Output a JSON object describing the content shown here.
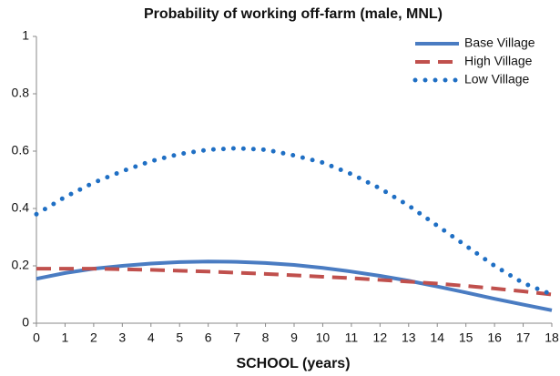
{
  "chart_data": {
    "type": "line",
    "title": "Probability of working off-farm (male, MNL)",
    "xlabel": "SCHOOL (years)",
    "x": [
      0,
      1,
      2,
      3,
      4,
      5,
      6,
      7,
      8,
      9,
      10,
      11,
      12,
      13,
      14,
      15,
      16,
      17,
      18
    ],
    "xlim": [
      0,
      18
    ],
    "xticks": [
      0,
      1,
      2,
      3,
      4,
      5,
      6,
      7,
      8,
      9,
      10,
      11,
      12,
      13,
      14,
      15,
      16,
      17,
      18
    ],
    "ylim": [
      0,
      1
    ],
    "yticks": [
      0,
      0.2,
      0.4,
      0.6,
      0.8,
      1
    ],
    "grid": false,
    "legend": "upper right",
    "series": [
      {
        "name": "Base Village",
        "color": "#4a7cc2",
        "style": "solid",
        "values": [
          0.155,
          0.175,
          0.19,
          0.2,
          0.208,
          0.213,
          0.215,
          0.214,
          0.21,
          0.203,
          0.193,
          0.18,
          0.165,
          0.148,
          0.128,
          0.107,
          0.085,
          0.065,
          0.045
        ]
      },
      {
        "name": "High Village",
        "color": "#c0504d",
        "style": "dashed",
        "values": [
          0.19,
          0.19,
          0.19,
          0.188,
          0.186,
          0.183,
          0.18,
          0.176,
          0.172,
          0.167,
          0.162,
          0.157,
          0.151,
          0.145,
          0.138,
          0.13,
          0.121,
          0.111,
          0.1
        ]
      },
      {
        "name": "Low Village",
        "color": "#1f6fc4",
        "style": "dotted",
        "values": [
          0.38,
          0.44,
          0.49,
          0.53,
          0.565,
          0.59,
          0.605,
          0.61,
          0.605,
          0.585,
          0.56,
          0.52,
          0.47,
          0.41,
          0.34,
          0.27,
          0.2,
          0.14,
          0.1
        ]
      }
    ]
  }
}
